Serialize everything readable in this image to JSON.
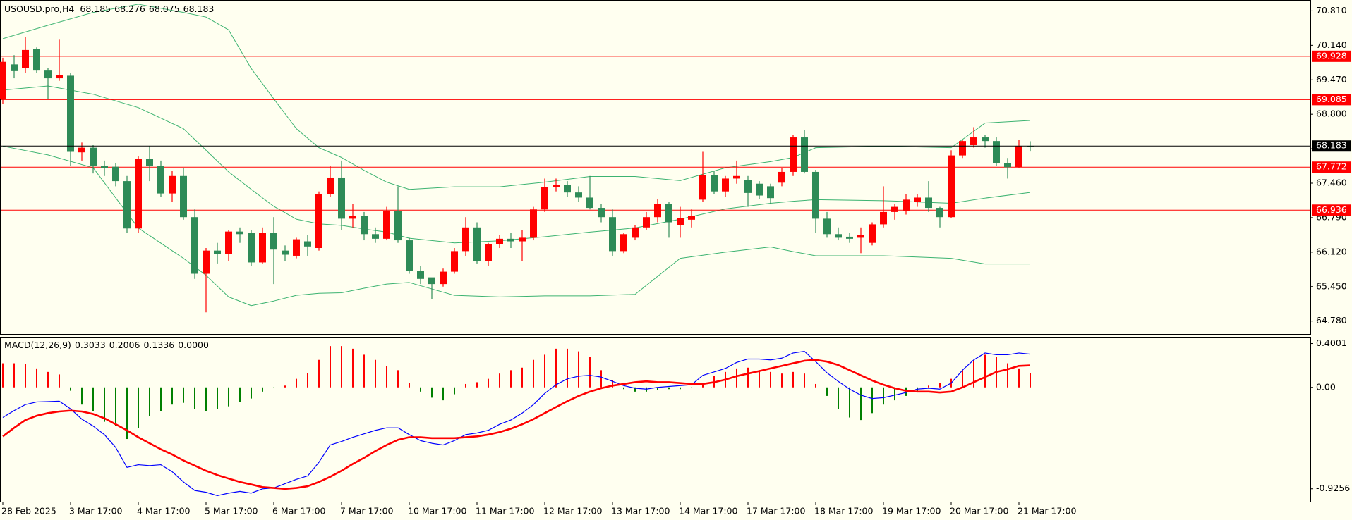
{
  "chart_data": [
    {
      "type": "candlestick",
      "title": "USOUSD.pro,H4",
      "categories": [
        "28 Feb 2025",
        null,
        null,
        null,
        null,
        null,
        "3 Mar 17:00",
        null,
        null,
        null,
        null,
        null,
        "4 Mar 17:00",
        null,
        null,
        null,
        null,
        null,
        "5 Mar 17:00",
        null,
        null,
        null,
        null,
        null,
        "6 Mar 17:00",
        null,
        null,
        null,
        null,
        null,
        "7 Mar 17:00",
        null,
        null,
        null,
        null,
        null,
        "10 Mar 17:00",
        null,
        null,
        null,
        null,
        null,
        "11 Mar 17:00",
        null,
        null,
        null,
        null,
        null,
        "12 Mar 17:00",
        null,
        null,
        null,
        null,
        null,
        "13 Mar 17:00",
        null,
        null,
        null,
        null,
        null,
        "14 Mar 17:00",
        null,
        null,
        null,
        null,
        null,
        "17 Mar 17:00",
        null,
        null,
        null,
        null,
        null,
        "18 Mar 17:00",
        null,
        null,
        null,
        null,
        null,
        "19 Mar 17:00",
        null,
        null,
        null,
        null,
        null,
        "20 Mar 17:00",
        null,
        null,
        null,
        null,
        null,
        "21 Mar 17:00",
        null
      ],
      "open": [
        69.1,
        69.77,
        69.7,
        70.07,
        69.65,
        69.5,
        69.55,
        68.06,
        68.15,
        67.8,
        67.78,
        67.5,
        66.58,
        67.93,
        67.8,
        67.26,
        67.6,
        66.8,
        65.7,
        66.15,
        66.08,
        66.52,
        66.5,
        65.92,
        66.5,
        66.15,
        66.05,
        66.33,
        66.2,
        67.25,
        67.57,
        66.77,
        66.82,
        66.47,
        66.38,
        66.92,
        66.35,
        65.75,
        65.63,
        65.5,
        65.74,
        66.14,
        66.6,
        65.95,
        66.27,
        66.38,
        66.33,
        66.4,
        66.95,
        67.38,
        67.43,
        67.28,
        67.18,
        66.98,
        66.8,
        66.14,
        66.4,
        66.6,
        66.8,
        67.06,
        66.65,
        66.75,
        67.14,
        67.62,
        67.3,
        67.55,
        67.52,
        67.45,
        67.4,
        67.47,
        67.68,
        68.35,
        67.68,
        66.77,
        66.47,
        66.42,
        66.4,
        66.3,
        66.66,
        66.9,
        66.92,
        67.1,
        67.18,
        66.98,
        66.8,
        68.0,
        68.2,
        68.35,
        68.28,
        67.85,
        67.77,
        68.185
      ],
      "high": [
        69.9,
        69.95,
        70.3,
        70.1,
        69.7,
        70.25,
        69.6,
        68.25,
        68.2,
        67.9,
        67.85,
        67.6,
        67.98,
        68.18,
        67.9,
        67.7,
        67.75,
        66.95,
        66.2,
        66.3,
        66.55,
        66.6,
        66.55,
        66.6,
        66.8,
        66.25,
        66.4,
        66.45,
        67.3,
        67.8,
        67.9,
        67.05,
        66.9,
        66.6,
        67.0,
        67.4,
        66.4,
        65.85,
        65.6,
        65.8,
        66.2,
        66.8,
        66.7,
        66.3,
        66.45,
        66.5,
        66.55,
        67.0,
        67.55,
        67.55,
        67.5,
        67.4,
        67.6,
        67.05,
        66.95,
        66.5,
        66.65,
        66.9,
        67.15,
        67.1,
        67.0,
        66.95,
        68.07,
        67.7,
        67.6,
        67.9,
        67.6,
        67.5,
        67.45,
        67.75,
        68.4,
        68.5,
        67.72,
        66.9,
        66.6,
        66.5,
        66.6,
        66.7,
        67.4,
        67.05,
        67.25,
        67.25,
        67.5,
        67.0,
        68.1,
        68.3,
        68.55,
        68.4,
        68.35,
        67.95,
        68.3,
        68.276
      ],
      "low": [
        69.0,
        69.5,
        69.6,
        69.6,
        69.1,
        69.45,
        67.8,
        67.9,
        67.65,
        67.6,
        67.4,
        66.5,
        66.5,
        67.5,
        67.2,
        67.1,
        66.75,
        65.6,
        64.95,
        65.9,
        65.95,
        66.3,
        65.85,
        65.9,
        65.5,
        65.95,
        66.0,
        66.05,
        66.15,
        67.2,
        66.55,
        66.6,
        66.35,
        66.3,
        66.35,
        66.3,
        65.7,
        65.5,
        65.2,
        65.45,
        65.7,
        66.05,
        65.9,
        65.85,
        66.2,
        66.2,
        65.95,
        66.35,
        66.9,
        67.3,
        67.2,
        67.1,
        66.95,
        66.7,
        66.05,
        66.1,
        66.35,
        66.55,
        66.7,
        66.4,
        66.4,
        66.6,
        67.1,
        67.25,
        67.2,
        67.45,
        67.0,
        67.15,
        67.05,
        67.4,
        67.6,
        67.65,
        66.5,
        66.4,
        66.35,
        66.3,
        66.1,
        66.25,
        66.6,
        66.75,
        66.85,
        67.0,
        66.9,
        66.6,
        66.78,
        67.95,
        68.15,
        68.15,
        67.8,
        67.55,
        67.75,
        68.075
      ],
      "close": [
        69.82,
        69.64,
        70.05,
        69.65,
        69.5,
        69.56,
        68.07,
        68.15,
        67.8,
        67.75,
        67.5,
        66.58,
        67.93,
        67.8,
        67.26,
        67.6,
        66.8,
        65.7,
        66.15,
        66.08,
        66.52,
        66.47,
        65.92,
        66.5,
        66.17,
        66.07,
        66.37,
        66.23,
        67.25,
        67.57,
        66.77,
        66.82,
        66.47,
        66.38,
        66.92,
        66.35,
        65.75,
        65.6,
        65.5,
        65.74,
        66.14,
        66.6,
        65.95,
        66.27,
        66.38,
        66.33,
        66.4,
        66.95,
        67.38,
        67.43,
        67.28,
        67.18,
        66.98,
        66.8,
        66.14,
        66.47,
        66.6,
        66.8,
        67.06,
        66.7,
        66.78,
        66.82,
        67.62,
        67.3,
        67.55,
        67.6,
        67.27,
        67.22,
        67.17,
        67.68,
        68.35,
        67.68,
        66.77,
        66.47,
        66.4,
        66.38,
        66.45,
        66.66,
        66.9,
        67.0,
        67.14,
        67.18,
        66.98,
        66.8,
        68.0,
        68.28,
        68.35,
        68.28,
        67.85,
        67.77,
        68.18,
        68.183
      ],
      "up_color": "#ff0000",
      "down_color": "#2e8b57",
      "bands": {
        "color": "#3cb371",
        "x": [
          0,
          4,
          8,
          12,
          16,
          18,
          20,
          22,
          24,
          26,
          28,
          30,
          32,
          34,
          36,
          40,
          44,
          48,
          52,
          56,
          60,
          64,
          68,
          70,
          72,
          78,
          84,
          87,
          91
        ],
        "upper": [
          70.27,
          70.53,
          70.78,
          70.94,
          70.78,
          70.69,
          70.44,
          69.69,
          69.1,
          68.52,
          68.15,
          67.96,
          67.71,
          67.48,
          67.34,
          67.39,
          67.39,
          67.48,
          67.59,
          67.59,
          67.51,
          67.76,
          67.88,
          67.96,
          68.15,
          68.18,
          68.15,
          68.63,
          68.68
        ],
        "middle": [
          69.27,
          69.35,
          69.19,
          68.93,
          68.52,
          68.1,
          67.68,
          67.34,
          67.01,
          66.76,
          66.67,
          66.64,
          66.57,
          66.51,
          66.39,
          66.3,
          66.34,
          66.42,
          66.51,
          66.59,
          66.76,
          66.96,
          67.07,
          67.11,
          67.14,
          67.12,
          67.07,
          67.17,
          67.28
        ],
        "lower": [
          68.18,
          68.01,
          67.76,
          66.59,
          66.0,
          65.67,
          65.25,
          65.08,
          65.17,
          65.28,
          65.32,
          65.33,
          65.42,
          65.5,
          65.53,
          65.28,
          65.25,
          65.27,
          65.27,
          65.3,
          66.0,
          66.12,
          66.22,
          66.13,
          66.05,
          66.05,
          66.0,
          65.89,
          65.89
        ]
      },
      "levels": [
        69.928,
        69.085,
        67.772,
        66.936
      ],
      "level_color": "#ff0000",
      "price_line_color": "#000000",
      "ylim": [
        64.529,
        70.994
      ],
      "yticks": [
        {
          "value": 70.81,
          "label": "70.810"
        },
        {
          "value": 70.14,
          "label": "70.140"
        },
        {
          "value": 69.47,
          "label": "69.470"
        },
        {
          "value": 68.8,
          "label": "68.800"
        },
        {
          "value": 68.13,
          "label": "68.130"
        },
        {
          "value": 67.46,
          "label": "67.460"
        },
        {
          "value": 66.79,
          "label": "66.790"
        },
        {
          "value": 66.12,
          "label": "66.120"
        },
        {
          "value": 65.45,
          "label": "65.450"
        },
        {
          "value": 64.78,
          "label": "64.780"
        }
      ]
    },
    {
      "type": "macd",
      "title": "MACD(12,26,9)",
      "histogram": {
        "up_color": "#ff0000",
        "down_color": "#008000",
        "values": [
          0.22,
          0.22,
          0.212,
          0.173,
          0.141,
          0.118,
          -0.031,
          -0.157,
          -0.22,
          -0.314,
          -0.353,
          -0.471,
          -0.369,
          -0.259,
          -0.22,
          -0.157,
          -0.141,
          -0.196,
          -0.22,
          -0.196,
          -0.173,
          -0.133,
          -0.102,
          -0.039,
          -0.008,
          0.016,
          0.078,
          0.133,
          0.251,
          0.377,
          0.377,
          0.353,
          0.298,
          0.251,
          0.196,
          0.157,
          0.039,
          -0.039,
          -0.094,
          -0.118,
          -0.063,
          0.031,
          0.047,
          0.078,
          0.126,
          0.157,
          0.18,
          0.251,
          0.298,
          0.353,
          0.353,
          0.329,
          0.275,
          0.157,
          0.063,
          -0.016,
          -0.039,
          -0.039,
          -0.024,
          -0.016,
          -0.016,
          -0.008,
          0.039,
          0.102,
          0.141,
          0.173,
          0.18,
          0.157,
          0.141,
          0.126,
          0.141,
          0.126,
          0.031,
          -0.078,
          -0.196,
          -0.275,
          -0.298,
          -0.235,
          -0.157,
          -0.118,
          -0.078,
          -0.039,
          0.016,
          0.039,
          0.078,
          0.157,
          0.251,
          0.298,
          0.275,
          0.22,
          0.173,
          0.1336
        ]
      },
      "series": [
        {
          "color": "#0000ff",
          "values": [
            -0.275,
            -0.212,
            -0.157,
            -0.133,
            -0.13,
            -0.126,
            -0.196,
            -0.29,
            -0.353,
            -0.431,
            -0.549,
            -0.73,
            -0.706,
            -0.714,
            -0.706,
            -0.769,
            -0.863,
            -0.941,
            -0.957,
            -0.988,
            -0.965,
            -0.949,
            -0.965,
            -0.926,
            -0.918,
            -0.879,
            -0.839,
            -0.808,
            -0.683,
            -0.526,
            -0.494,
            -0.455,
            -0.424,
            -0.392,
            -0.369,
            -0.369,
            -0.431,
            -0.486,
            -0.51,
            -0.526,
            -0.486,
            -0.431,
            -0.416,
            -0.392,
            -0.337,
            -0.298,
            -0.235,
            -0.157,
            -0.055,
            0.024,
            0.078,
            0.102,
            0.11,
            0.094,
            0.055,
            0.016,
            -0.008,
            -0.016,
            0,
            0.008,
            0.016,
            0.024,
            0.11,
            0.141,
            0.173,
            0.228,
            0.259,
            0.259,
            0.251,
            0.267,
            0.314,
            0.329,
            0.235,
            0.133,
            0.055,
            -0.016,
            -0.071,
            -0.102,
            -0.094,
            -0.071,
            -0.047,
            -0.016,
            -0.008,
            -0.016,
            0.039,
            0.157,
            0.251,
            0.314,
            0.298,
            0.298,
            0.314,
            0.3033
          ]
        },
        {
          "color": "#ff0000",
          "values": [
            -0.447,
            -0.369,
            -0.298,
            -0.259,
            -0.235,
            -0.22,
            -0.212,
            -0.22,
            -0.243,
            -0.282,
            -0.337,
            -0.392,
            -0.455,
            -0.51,
            -0.565,
            -0.612,
            -0.667,
            -0.714,
            -0.761,
            -0.8,
            -0.832,
            -0.863,
            -0.886,
            -0.91,
            -0.918,
            -0.926,
            -0.918,
            -0.902,
            -0.863,
            -0.816,
            -0.761,
            -0.698,
            -0.643,
            -0.581,
            -0.526,
            -0.479,
            -0.455,
            -0.455,
            -0.463,
            -0.463,
            -0.463,
            -0.455,
            -0.447,
            -0.431,
            -0.408,
            -0.377,
            -0.337,
            -0.29,
            -0.235,
            -0.18,
            -0.126,
            -0.078,
            -0.039,
            -0.008,
            0.016,
            0.031,
            0.047,
            0.055,
            0.047,
            0.047,
            0.039,
            0.031,
            0.031,
            0.047,
            0.071,
            0.102,
            0.126,
            0.149,
            0.173,
            0.196,
            0.22,
            0.243,
            0.251,
            0.235,
            0.204,
            0.157,
            0.11,
            0.063,
            0.024,
            -0.008,
            -0.031,
            -0.039,
            -0.039,
            -0.047,
            -0.039,
            0,
            0.047,
            0.094,
            0.141,
            0.165,
            0.196,
            0.2006
          ]
        }
      ],
      "extra_value": {
        "value": 0,
        "label": "0.0000"
      },
      "ylim": [
        -1.043,
        0.455
      ],
      "yticks": [
        0.4001,
        {
          "value": 0,
          "label": "0.00"
        },
        -0.9256
      ]
    }
  ]
}
